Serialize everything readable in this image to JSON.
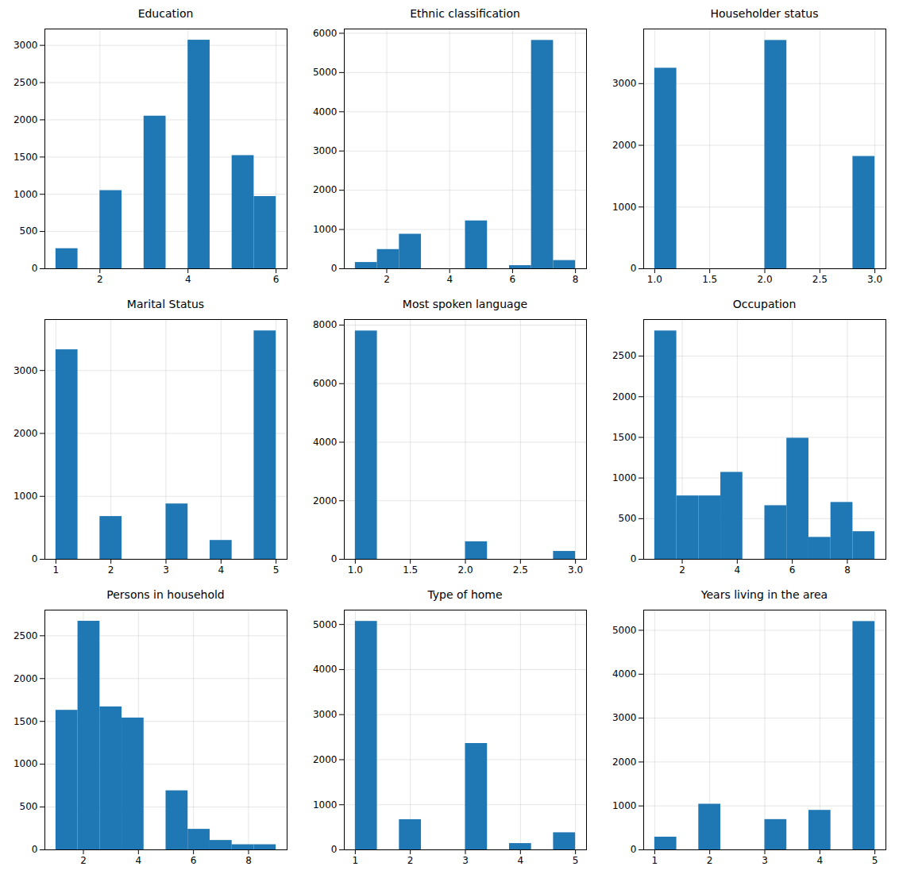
{
  "chart_data": [
    {
      "type": "histogram",
      "title": "Education",
      "color": "#1f77b4",
      "grid": true,
      "bins": [
        1,
        1.5,
        2,
        2.5,
        3,
        3.5,
        4,
        4.5,
        5,
        5.5,
        6
      ],
      "values": [
        270,
        0,
        1050,
        0,
        2050,
        0,
        3070,
        0,
        1520,
        970
      ],
      "xlim": [
        0.75,
        6.25
      ],
      "xticks": [
        2,
        4,
        6
      ],
      "ylim": [
        0,
        3220
      ],
      "yticks": [
        0,
        500,
        1000,
        1500,
        2000,
        2500,
        3000
      ]
    },
    {
      "type": "histogram",
      "title": "Ethnic classification",
      "color": "#1f77b4",
      "grid": true,
      "bins": [
        1,
        1.7,
        2.4,
        3.1,
        3.8,
        4.5,
        5.2,
        5.9,
        6.6,
        7.3,
        8
      ],
      "values": [
        160,
        490,
        880,
        0,
        0,
        1220,
        0,
        80,
        5820,
        210
      ],
      "xlim": [
        0.65,
        8.35
      ],
      "xticks": [
        2,
        4,
        6,
        8
      ],
      "ylim": [
        0,
        6110
      ],
      "yticks": [
        0,
        1000,
        2000,
        3000,
        4000,
        5000,
        6000
      ]
    },
    {
      "type": "histogram",
      "title": "Householder status",
      "color": "#1f77b4",
      "grid": true,
      "bins": [
        1,
        1.2,
        1.4,
        1.6,
        1.8,
        2,
        2.2,
        2.4,
        2.6,
        2.8,
        3
      ],
      "values": [
        3250,
        0,
        0,
        0,
        0,
        3700,
        0,
        0,
        0,
        1820
      ],
      "xlim": [
        0.9,
        3.1
      ],
      "xticks": [
        {
          "value": 1,
          "label": "1.0"
        },
        {
          "value": 1.5,
          "label": "1.5"
        },
        {
          "value": 2,
          "label": "2.0"
        },
        {
          "value": 2.5,
          "label": "2.5"
        },
        {
          "value": 3,
          "label": "3.0"
        }
      ],
      "ylim": [
        0,
        3885
      ],
      "yticks": [
        0,
        1000,
        2000,
        3000
      ]
    },
    {
      "type": "histogram",
      "title": "Marital Status",
      "color": "#1f77b4",
      "grid": true,
      "bins": [
        1,
        1.4,
        1.8,
        2.2,
        2.6,
        3,
        3.4,
        3.8,
        4.2,
        4.6,
        5
      ],
      "values": [
        3330,
        0,
        680,
        0,
        0,
        880,
        0,
        300,
        0,
        3630
      ],
      "xlim": [
        0.8,
        5.2
      ],
      "xticks": [
        1,
        2,
        3,
        4,
        5
      ],
      "ylim": [
        0,
        3810
      ],
      "yticks": [
        0,
        1000,
        2000,
        3000
      ]
    },
    {
      "type": "histogram",
      "title": "Most spoken language",
      "color": "#1f77b4",
      "grid": true,
      "bins": [
        1,
        1.2,
        1.4,
        1.6,
        1.8,
        2,
        2.2,
        2.4,
        2.6,
        2.8,
        3
      ],
      "values": [
        7800,
        0,
        0,
        0,
        0,
        600,
        0,
        0,
        0,
        270
      ],
      "xlim": [
        0.9,
        3.1
      ],
      "xticks": [
        {
          "value": 1,
          "label": "1.0"
        },
        {
          "value": 1.5,
          "label": "1.5"
        },
        {
          "value": 2,
          "label": "2.0"
        },
        {
          "value": 2.5,
          "label": "2.5"
        },
        {
          "value": 3,
          "label": "3.0"
        }
      ],
      "ylim": [
        0,
        8190
      ],
      "yticks": [
        0,
        2000,
        4000,
        6000,
        8000
      ]
    },
    {
      "type": "histogram",
      "title": "Occupation",
      "color": "#1f77b4",
      "grid": true,
      "bins": [
        1,
        1.8,
        2.6,
        3.4,
        4.2,
        5,
        5.8,
        6.6,
        7.4,
        8.2,
        9
      ],
      "values": [
        2810,
        780,
        780,
        1070,
        0,
        660,
        1490,
        270,
        700,
        340
      ],
      "xlim": [
        0.6,
        9.4
      ],
      "xticks": [
        2,
        4,
        6,
        8
      ],
      "ylim": [
        0,
        2950
      ],
      "yticks": [
        0,
        500,
        1000,
        1500,
        2000,
        2500
      ]
    },
    {
      "type": "histogram",
      "title": "Persons in household",
      "color": "#1f77b4",
      "grid": true,
      "bins": [
        1,
        1.8,
        2.6,
        3.4,
        4.2,
        5,
        5.8,
        6.6,
        7.4,
        8.2,
        9
      ],
      "values": [
        1630,
        2670,
        1670,
        1540,
        0,
        690,
        240,
        110,
        60,
        60
      ],
      "xlim": [
        0.6,
        9.4
      ],
      "xticks": [
        2,
        4,
        6,
        8
      ],
      "ylim": [
        0,
        2800
      ],
      "yticks": [
        0,
        500,
        1000,
        1500,
        2000,
        2500
      ]
    },
    {
      "type": "histogram",
      "title": "Type of home",
      "color": "#1f77b4",
      "grid": true,
      "bins": [
        1,
        1.4,
        1.8,
        2.2,
        2.6,
        3,
        3.4,
        3.8,
        4.2,
        4.6,
        5
      ],
      "values": [
        5070,
        0,
        670,
        0,
        0,
        2360,
        0,
        140,
        0,
        380
      ],
      "xlim": [
        0.8,
        5.2
      ],
      "xticks": [
        1,
        2,
        3,
        4,
        5
      ],
      "ylim": [
        0,
        5320
      ],
      "yticks": [
        0,
        1000,
        2000,
        3000,
        4000,
        5000
      ]
    },
    {
      "type": "histogram",
      "title": "Years living in the area",
      "color": "#1f77b4",
      "grid": true,
      "bins": [
        1,
        1.4,
        1.8,
        2.2,
        2.6,
        3,
        3.4,
        3.8,
        4.2,
        4.6,
        5
      ],
      "values": [
        290,
        0,
        1040,
        0,
        0,
        690,
        0,
        900,
        0,
        5200
      ],
      "xlim": [
        0.8,
        5.2
      ],
      "xticks": [
        1,
        2,
        3,
        4,
        5
      ],
      "ylim": [
        0,
        5460
      ],
      "yticks": [
        0,
        1000,
        2000,
        3000,
        4000,
        5000
      ]
    }
  ]
}
